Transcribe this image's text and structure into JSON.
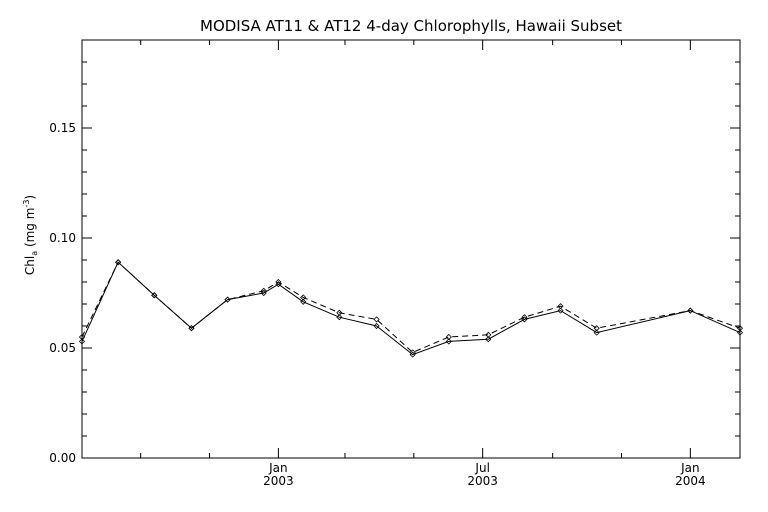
{
  "chart_data": {
    "type": "line",
    "title": "MODISA AT11 & AT12 4-day Chlorophylls, Hawaii Subset",
    "ylabel": {
      "main": "Chl",
      "sub": "a",
      "units_open": " (mg m",
      "units_sup": "-3",
      "units_close": ")"
    },
    "ylim": [
      0.0,
      0.19
    ],
    "xlim": [
      "2002-07-11",
      "2004-02-14"
    ],
    "yticks": [
      {
        "value": 0.0,
        "label": "0.00"
      },
      {
        "value": 0.05,
        "label": "0.05"
      },
      {
        "value": 0.1,
        "label": "0.10"
      },
      {
        "value": 0.15,
        "label": "0.15"
      }
    ],
    "xticks": [
      {
        "date": "2003-01-01",
        "line1": "Jan",
        "line2": "2003"
      },
      {
        "date": "2003-07-01",
        "line1": "Jul",
        "line2": "2003"
      },
      {
        "date": "2004-01-01",
        "line1": "Jan",
        "line2": "2004"
      }
    ],
    "grid": false,
    "series": [
      {
        "line_style": "solid",
        "points": [
          {
            "x": "2002-07-11",
            "y": 0.053
          },
          {
            "x": "2002-08-12",
            "y": 0.089
          },
          {
            "x": "2002-09-13",
            "y": 0.074
          },
          {
            "x": "2002-10-16",
            "y": 0.059
          },
          {
            "x": "2002-11-17",
            "y": 0.072
          },
          {
            "x": "2002-12-19",
            "y": 0.075
          },
          {
            "x": "2003-01-01",
            "y": 0.079
          },
          {
            "x": "2003-01-23",
            "y": 0.071
          },
          {
            "x": "2003-02-24",
            "y": 0.064
          },
          {
            "x": "2003-03-29",
            "y": 0.06
          },
          {
            "x": "2003-04-30",
            "y": 0.047
          },
          {
            "x": "2003-06-01",
            "y": 0.053
          },
          {
            "x": "2003-07-06",
            "y": 0.054
          },
          {
            "x": "2003-08-07",
            "y": 0.063
          },
          {
            "x": "2003-09-08",
            "y": 0.067
          },
          {
            "x": "2003-10-10",
            "y": 0.057
          },
          {
            "x": "2004-01-01",
            "y": 0.067
          },
          {
            "x": "2004-02-14",
            "y": 0.057
          }
        ]
      },
      {
        "line_style": "dashed",
        "points": [
          {
            "x": "2002-07-11",
            "y": 0.055
          },
          {
            "x": "2002-08-12",
            "y": 0.089
          },
          {
            "x": "2002-09-13",
            "y": 0.074
          },
          {
            "x": "2002-10-16",
            "y": 0.059
          },
          {
            "x": "2002-11-17",
            "y": 0.072
          },
          {
            "x": "2002-12-19",
            "y": 0.076
          },
          {
            "x": "2003-01-01",
            "y": 0.08
          },
          {
            "x": "2003-01-23",
            "y": 0.073
          },
          {
            "x": "2003-02-24",
            "y": 0.066
          },
          {
            "x": "2003-03-29",
            "y": 0.063
          },
          {
            "x": "2003-04-30",
            "y": 0.048
          },
          {
            "x": "2003-06-01",
            "y": 0.055
          },
          {
            "x": "2003-07-06",
            "y": 0.056
          },
          {
            "x": "2003-08-07",
            "y": 0.064
          },
          {
            "x": "2003-09-08",
            "y": 0.069
          },
          {
            "x": "2003-10-10",
            "y": 0.059
          },
          {
            "x": "2004-01-01",
            "y": 0.067
          },
          {
            "x": "2004-02-14",
            "y": 0.059
          }
        ]
      }
    ]
  }
}
